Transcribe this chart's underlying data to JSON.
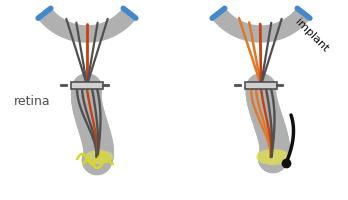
{
  "bg_color": "#ffffff",
  "gray_color": "#b0b0b0",
  "dark_gray": "#505050",
  "light_gray": "#d0d0d0",
  "orange_color": "#e07828",
  "red_orange": "#c84010",
  "blue_color": "#4488cc",
  "yellow_color": "#d8d820",
  "yellow_light": "#e8e840",
  "black_color": "#101010",
  "retina_label": "retina",
  "implant_label": "implant",
  "fig_width": 3.48,
  "fig_height": 2.0
}
